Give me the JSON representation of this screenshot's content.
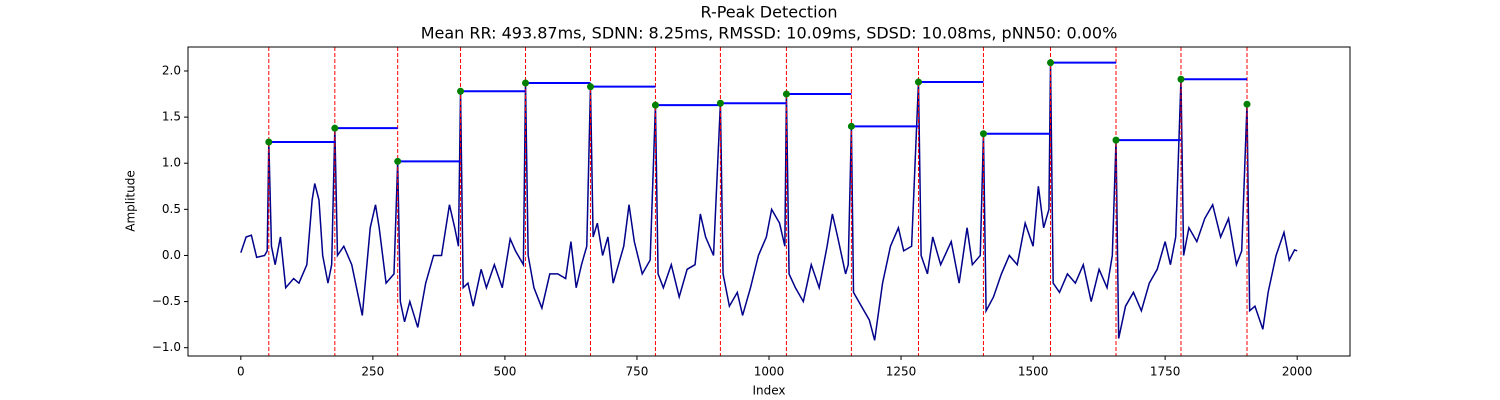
{
  "chart_data": {
    "type": "line",
    "title": "R-Peak Detection",
    "subtitle": "Mean RR: 493.87ms, SDNN: 8.25ms, RMSSD: 10.09ms, SDSD: 10.08ms, pNN50: 0.00%",
    "xlabel": "Index",
    "ylabel": "Amplitude",
    "xlim": [
      -100,
      2100
    ],
    "ylim": [
      -1.09,
      2.26
    ],
    "xticks": [
      0,
      250,
      500,
      750,
      1000,
      1250,
      1500,
      1750,
      2000
    ],
    "yticks": [
      {
        "value": -1.0,
        "label": "−1.0"
      },
      {
        "value": -0.5,
        "label": "−0.5"
      },
      {
        "value": 0.0,
        "label": "0.0"
      },
      {
        "value": 0.5,
        "label": "0.5"
      },
      {
        "value": 1.0,
        "label": "1.0"
      },
      {
        "value": 1.5,
        "label": "1.5"
      },
      {
        "value": 2.0,
        "label": "2.0"
      }
    ],
    "series": [
      {
        "type": "line",
        "color": "#00008b",
        "x": [
          0,
          10,
          20,
          30,
          45,
          50,
          53,
          58,
          65,
          75,
          85,
          100,
          110,
          125,
          135,
          140,
          148,
          155,
          165,
          172,
          178,
          183,
          195,
          210,
          230,
          245,
          255,
          262,
          275,
          290,
          297,
          302,
          310,
          320,
          335,
          350,
          365,
          380,
          395,
          405,
          412,
          416,
          421,
          430,
          440,
          455,
          465,
          480,
          495,
          510,
          520,
          535,
          539,
          544,
          555,
          570,
          585,
          600,
          615,
          625,
          635,
          645,
          655,
          662,
          667,
          675,
          685,
          695,
          705,
          715,
          725,
          735,
          745,
          760,
          775,
          785,
          790,
          800,
          815,
          830,
          845,
          860,
          870,
          880,
          895,
          908,
          913,
          925,
          940,
          950,
          965,
          980,
          995,
          1005,
          1020,
          1030,
          1033,
          1038,
          1050,
          1065,
          1080,
          1095,
          1110,
          1120,
          1130,
          1145,
          1150,
          1156,
          1160,
          1175,
          1190,
          1200,
          1215,
          1230,
          1245,
          1255,
          1270,
          1283,
          1288,
          1300,
          1310,
          1325,
          1345,
          1360,
          1375,
          1385,
          1400,
          1406,
          1411,
          1425,
          1440,
          1455,
          1470,
          1485,
          1500,
          1510,
          1520,
          1530,
          1533,
          1538,
          1550,
          1565,
          1580,
          1595,
          1610,
          1625,
          1640,
          1650,
          1657,
          1662,
          1675,
          1690,
          1705,
          1720,
          1735,
          1750,
          1760,
          1770,
          1780,
          1785,
          1795,
          1810,
          1825,
          1840,
          1855,
          1870,
          1885,
          1895,
          1905,
          1910,
          1920,
          1935,
          1945,
          1960,
          1975,
          1985,
          1995,
          2000
        ],
        "values": [
          0.03,
          0.2,
          0.22,
          -0.02,
          0.0,
          0.05,
          1.23,
          0.1,
          -0.1,
          0.2,
          -0.35,
          -0.25,
          -0.3,
          -0.1,
          0.6,
          0.78,
          0.6,
          0.0,
          -0.3,
          -0.1,
          1.38,
          0.0,
          0.1,
          -0.1,
          -0.65,
          0.3,
          0.55,
          0.3,
          -0.3,
          -0.2,
          1.02,
          -0.5,
          -0.72,
          -0.5,
          -0.78,
          -0.3,
          0.0,
          0.0,
          0.55,
          0.3,
          0.1,
          1.78,
          -0.35,
          -0.3,
          -0.55,
          -0.15,
          -0.35,
          -0.1,
          -0.35,
          0.18,
          0.05,
          -0.1,
          1.87,
          0.0,
          -0.35,
          -0.57,
          -0.2,
          -0.2,
          -0.25,
          0.15,
          -0.35,
          -0.1,
          0.1,
          1.83,
          0.2,
          0.35,
          0.0,
          0.2,
          -0.3,
          -0.1,
          0.1,
          0.55,
          0.15,
          -0.2,
          -0.05,
          1.63,
          -0.2,
          -0.35,
          -0.1,
          -0.45,
          -0.15,
          -0.1,
          0.45,
          0.2,
          0.0,
          1.65,
          -0.2,
          -0.55,
          -0.4,
          -0.65,
          -0.35,
          0.0,
          0.2,
          0.5,
          0.35,
          0.1,
          1.75,
          -0.2,
          -0.35,
          -0.5,
          -0.1,
          -0.35,
          0.1,
          0.45,
          0.2,
          -0.2,
          -0.1,
          1.4,
          -0.4,
          -0.55,
          -0.7,
          -0.92,
          -0.3,
          0.1,
          0.3,
          0.05,
          0.1,
          1.88,
          0.0,
          -0.2,
          0.2,
          -0.1,
          0.15,
          -0.3,
          0.3,
          -0.1,
          0.0,
          1.32,
          -0.6,
          -0.45,
          -0.2,
          0.0,
          -0.1,
          0.35,
          0.1,
          0.75,
          0.3,
          0.5,
          2.09,
          -0.3,
          -0.4,
          -0.2,
          -0.3,
          -0.1,
          -0.5,
          -0.15,
          -0.35,
          0.0,
          1.25,
          -0.9,
          -0.55,
          -0.4,
          -0.6,
          -0.3,
          -0.15,
          0.15,
          -0.1,
          0.2,
          1.91,
          0.0,
          0.3,
          0.15,
          0.4,
          0.55,
          0.2,
          0.4,
          -0.1,
          0.05,
          1.64,
          -0.6,
          -0.55,
          -0.8,
          -0.4,
          0.0,
          0.25,
          -0.05,
          0.06,
          0.05
        ]
      },
      {
        "type": "scatter",
        "color": "#008000",
        "peak_line_color": "#ff0000",
        "rr_line_color": "#0000ff",
        "x": [
          53,
          178,
          297,
          416,
          539,
          662,
          785,
          908,
          1033,
          1156,
          1283,
          1406,
          1533,
          1657,
          1780,
          1905
        ],
        "values": [
          1.23,
          1.38,
          1.02,
          1.78,
          1.87,
          1.83,
          1.63,
          1.65,
          1.75,
          1.4,
          1.88,
          1.32,
          2.09,
          1.25,
          1.91,
          1.64
        ]
      }
    ]
  }
}
